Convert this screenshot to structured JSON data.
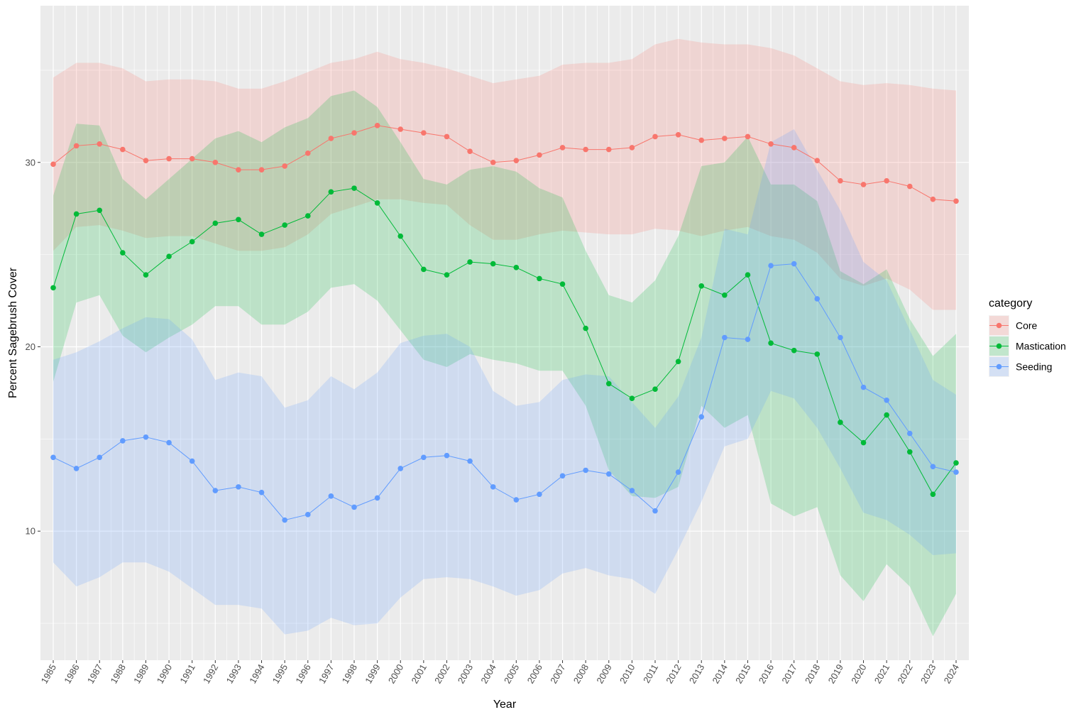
{
  "chart_data": {
    "type": "line",
    "xlabel": "Year",
    "ylabel": "Percent Sagebrush Cover",
    "x": [
      "1985",
      "1986",
      "1987",
      "1988",
      "1989",
      "1990",
      "1991",
      "1992",
      "1993",
      "1994",
      "1995",
      "1996",
      "1997",
      "1998",
      "1999",
      "2000",
      "2001",
      "2002",
      "2003",
      "2004",
      "2005",
      "2006",
      "2007",
      "2008",
      "2009",
      "2010",
      "2011",
      "2012",
      "2013",
      "2014",
      "2015",
      "2016",
      "2017",
      "2018",
      "2019",
      "2020",
      "2021",
      "2022",
      "2023",
      "2024"
    ],
    "ylim": [
      3,
      38.5
    ],
    "y_ticks": [
      10,
      20,
      30
    ],
    "y_tick_labels": [
      "10",
      "20",
      "30"
    ],
    "grid": true,
    "legend_title": "category",
    "legend_position": "right",
    "series": [
      {
        "name": "Core",
        "color": "#F8766D",
        "values": [
          29.9,
          30.9,
          31.0,
          30.7,
          30.1,
          30.2,
          30.2,
          30.0,
          29.6,
          29.6,
          29.8,
          30.5,
          31.3,
          31.6,
          32.0,
          31.8,
          31.6,
          31.4,
          30.6,
          30.0,
          30.1,
          30.4,
          30.8,
          30.7,
          30.7,
          30.8,
          31.4,
          31.5,
          31.2,
          31.3,
          31.4,
          31.0,
          30.8,
          30.1,
          29.0,
          28.8,
          29.0,
          28.7,
          28.0,
          27.9
        ],
        "upper": [
          34.6,
          35.4,
          35.4,
          35.1,
          34.4,
          34.5,
          34.5,
          34.4,
          34.0,
          34.0,
          34.4,
          34.9,
          35.4,
          35.6,
          36.0,
          35.6,
          35.4,
          35.1,
          34.7,
          34.3,
          34.5,
          34.7,
          35.3,
          35.4,
          35.4,
          35.6,
          36.4,
          36.7,
          36.5,
          36.4,
          36.4,
          36.2,
          35.8,
          35.1,
          34.4,
          34.2,
          34.3,
          34.2,
          34.0,
          33.9
        ],
        "lower": [
          25.2,
          26.5,
          26.6,
          26.3,
          25.9,
          26.0,
          26.0,
          25.6,
          25.2,
          25.2,
          25.4,
          26.1,
          27.2,
          27.6,
          28.0,
          28.0,
          27.8,
          27.7,
          26.6,
          25.8,
          25.8,
          26.1,
          26.3,
          26.2,
          26.1,
          26.1,
          26.4,
          26.3,
          26.0,
          26.3,
          26.5,
          26.0,
          25.8,
          25.1,
          23.7,
          23.3,
          23.7,
          23.1,
          22.0,
          22.0
        ]
      },
      {
        "name": "Mastication",
        "color": "#00BA38",
        "values": [
          23.2,
          27.2,
          27.4,
          25.1,
          23.9,
          24.9,
          25.7,
          26.7,
          26.9,
          26.1,
          26.6,
          27.1,
          28.4,
          28.6,
          27.8,
          26.0,
          24.2,
          23.9,
          24.6,
          24.5,
          24.3,
          23.7,
          23.4,
          21.0,
          18.0,
          17.2,
          17.7,
          19.2,
          23.3,
          22.8,
          23.9,
          20.2,
          19.8,
          19.6,
          15.9,
          14.8,
          16.3,
          14.3,
          12.0,
          13.7
        ],
        "upper": [
          28.2,
          32.1,
          32.0,
          29.1,
          28.0,
          29.1,
          30.2,
          31.3,
          31.7,
          31.1,
          31.9,
          32.4,
          33.6,
          33.9,
          33.0,
          31.1,
          29.1,
          28.8,
          29.6,
          29.8,
          29.5,
          28.6,
          28.1,
          25.2,
          22.8,
          22.4,
          23.6,
          26.0,
          29.8,
          30.0,
          31.4,
          28.8,
          28.8,
          27.9,
          24.1,
          23.4,
          24.2,
          21.5,
          19.5,
          20.7
        ],
        "lower": [
          18.1,
          22.4,
          22.8,
          20.6,
          19.7,
          20.5,
          21.2,
          22.2,
          22.2,
          21.2,
          21.2,
          21.9,
          23.2,
          23.4,
          22.5,
          20.9,
          19.3,
          18.9,
          19.6,
          19.3,
          19.1,
          18.7,
          18.7,
          16.8,
          13.3,
          11.9,
          11.8,
          12.4,
          16.8,
          15.6,
          16.3,
          11.5,
          10.8,
          11.3,
          7.6,
          6.2,
          8.2,
          7.0,
          4.3,
          6.6
        ]
      },
      {
        "name": "Seeding",
        "color": "#619CFF",
        "values": [
          14.0,
          13.4,
          14.0,
          14.9,
          15.1,
          14.8,
          13.8,
          12.2,
          12.4,
          12.1,
          10.6,
          10.9,
          11.9,
          11.3,
          11.8,
          13.4,
          14.0,
          14.1,
          13.8,
          12.4,
          11.7,
          12.0,
          13.0,
          13.3,
          13.1,
          12.2,
          11.1,
          13.2,
          16.2,
          20.5,
          20.4,
          24.4,
          24.5,
          22.6,
          20.5,
          17.8,
          17.1,
          15.3,
          13.5,
          13.2
        ],
        "upper": [
          19.3,
          19.7,
          20.3,
          21.0,
          21.6,
          21.5,
          20.4,
          18.2,
          18.6,
          18.4,
          16.7,
          17.1,
          18.4,
          17.7,
          18.6,
          20.2,
          20.6,
          20.7,
          20.0,
          17.6,
          16.8,
          17.0,
          18.2,
          18.5,
          18.4,
          17.0,
          15.6,
          17.3,
          20.5,
          26.4,
          26.1,
          31.1,
          31.8,
          29.6,
          27.4,
          24.6,
          23.6,
          20.9,
          18.2,
          17.4
        ],
        "lower": [
          8.3,
          7.0,
          7.5,
          8.3,
          8.3,
          7.8,
          6.9,
          6.0,
          6.0,
          5.8,
          4.4,
          4.6,
          5.3,
          4.9,
          5.0,
          6.4,
          7.4,
          7.5,
          7.4,
          7.0,
          6.5,
          6.8,
          7.7,
          8.0,
          7.6,
          7.4,
          6.6,
          9.0,
          11.6,
          14.6,
          15.0,
          17.6,
          17.2,
          15.6,
          13.4,
          11.0,
          10.6,
          9.8,
          8.7,
          8.8
        ]
      }
    ]
  }
}
